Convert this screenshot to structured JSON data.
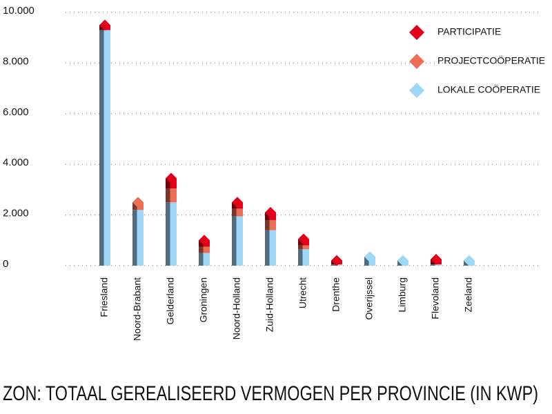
{
  "chart_data": {
    "type": "stacked-bar",
    "title": "ZON: TOTAAL GEREALISEERD VERMOGEN PER PROVINCIE (IN KWP)",
    "categories": [
      "Friesland",
      "Noord-Brabant",
      "Gelderland",
      "Groningen",
      "Noord-Holland",
      "Zuid-Holland",
      "Utrecht",
      "Drenthe",
      "Overijssel",
      "Limburg",
      "Flevoland",
      "Zeeland"
    ],
    "series": [
      {
        "name": "LOKALE COÖPERATIE",
        "color": "#9fd8f6",
        "values": [
          9300,
          2200,
          2500,
          500,
          1950,
          1400,
          650,
          50,
          350,
          200,
          50,
          200
        ]
      },
      {
        "name": "PROJECTCOÖPERATIE",
        "color": "#ee6e55",
        "values": [
          0,
          300,
          550,
          250,
          300,
          400,
          150,
          0,
          0,
          0,
          0,
          0
        ]
      },
      {
        "name": "PARTICIPATIE",
        "color": "#e2001a",
        "values": [
          200,
          0,
          400,
          250,
          250,
          300,
          250,
          150,
          0,
          0,
          200,
          0
        ]
      }
    ],
    "ylim": [
      0,
      10000
    ],
    "yticks": [
      0,
      {
        "value": 2000,
        "label": "2.000"
      },
      {
        "value": 4000,
        "label": "4.000"
      },
      {
        "value": 6000,
        "label": "6.000"
      },
      {
        "value": 8000,
        "label": "8.000"
      },
      {
        "value": 10000,
        "label": "10.000"
      }
    ],
    "grid": true
  }
}
